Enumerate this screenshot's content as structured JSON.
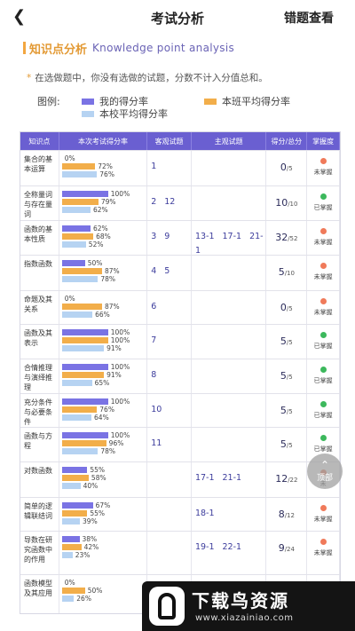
{
  "nav": {
    "back_icon": "chevron-left",
    "title": "考试分析",
    "right_link": "错题查看"
  },
  "section": {
    "title_cn": "知识点分析",
    "title_en": "Knowledge point analysis"
  },
  "note": "在选做题中，你没有选做的试题，分数不计入分值总和。",
  "legend": {
    "title": "图例:",
    "items": [
      {
        "label": "我的得分率",
        "color": "#7a73e4"
      },
      {
        "label": "本班平均得分率",
        "color": "#f2ae4a"
      },
      {
        "label": "本校平均得分率",
        "color": "#b6d3f2"
      }
    ]
  },
  "table": {
    "headers": [
      "知识点",
      "本次考试得分率",
      "客观试题",
      "主观试题",
      "得分/总分",
      "掌握度"
    ],
    "rows": [
      {
        "kp": "集合的基本运算",
        "rates": [
          "0%",
          "72%",
          "76%"
        ],
        "obj": "1",
        "subj": "",
        "score": "0",
        "total": "/5",
        "mastery": "未掌握",
        "status_color": "#f07a5a"
      },
      {
        "kp": "全称量词与存在量词",
        "rates": [
          "100%",
          "79%",
          "62%"
        ],
        "obj": "2 12",
        "subj": "",
        "score": "10",
        "total": "/10",
        "mastery": "已掌握",
        "status_color": "#3cb85c"
      },
      {
        "kp": "函数的基本性质",
        "rates": [
          "62%",
          "68%",
          "52%"
        ],
        "obj": "3 9",
        "subj": "13-1 17-1 21-1",
        "score": "32",
        "total": "/52",
        "mastery": "未掌握",
        "status_color": "#f07a5a"
      },
      {
        "kp": "指数函数",
        "rates": [
          "50%",
          "87%",
          "78%"
        ],
        "obj": "4 5",
        "subj": "",
        "score": "5",
        "total": "/10",
        "mastery": "未掌握",
        "status_color": "#f07a5a"
      },
      {
        "kp": "命题及其关系",
        "rates": [
          "0%",
          "87%",
          "66%"
        ],
        "obj": "6",
        "subj": "",
        "score": "0",
        "total": "/5",
        "mastery": "未掌握",
        "status_color": "#f07a5a"
      },
      {
        "kp": "函数及其表示",
        "rates": [
          "100%",
          "100%",
          "91%"
        ],
        "obj": "7",
        "subj": "",
        "score": "5",
        "total": "/5",
        "mastery": "已掌握",
        "status_color": "#3cb85c"
      },
      {
        "kp": "合情推理与演绎推理",
        "rates": [
          "100%",
          "91%",
          "65%"
        ],
        "obj": "8",
        "subj": "",
        "score": "5",
        "total": "/5",
        "mastery": "已掌握",
        "status_color": "#3cb85c"
      },
      {
        "kp": "充分条件与必要条件",
        "rates": [
          "100%",
          "76%",
          "64%"
        ],
        "obj": "10",
        "subj": "",
        "score": "5",
        "total": "/5",
        "mastery": "已掌握",
        "status_color": "#3cb85c"
      },
      {
        "kp": "函数与方程",
        "rates": [
          "100%",
          "96%",
          "78%"
        ],
        "obj": "11",
        "subj": "",
        "score": "5",
        "total": "/5",
        "mastery": "已掌握",
        "status_color": "#3cb85c"
      },
      {
        "kp": "对数函数",
        "rates": [
          "55%",
          "58%",
          "40%"
        ],
        "obj": "",
        "subj": "17-1 21-1",
        "score": "12",
        "total": "/22",
        "mastery": "未",
        "status_color": "#f07a5a"
      },
      {
        "kp": "简单的逻辑联结词",
        "rates": [
          "67%",
          "55%",
          "39%"
        ],
        "obj": "",
        "subj": "18-1",
        "score": "8",
        "total": "/12",
        "mastery": "未掌握",
        "status_color": "#f07a5a"
      },
      {
        "kp": "导数在研究函数中的作用",
        "rates": [
          "38%",
          "42%",
          "23%"
        ],
        "obj": "",
        "subj": "19-1 22-1",
        "score": "9",
        "total": "/24",
        "mastery": "未掌握",
        "status_color": "#f07a5a"
      },
      {
        "kp": "函数模型及其应用",
        "rates": [
          "0%",
          "50%",
          "26%"
        ],
        "obj": "",
        "subj": "",
        "score": "",
        "total": "",
        "mastery": "",
        "status_color": "#f07a5a"
      }
    ]
  },
  "fab": {
    "label": "顶部",
    "icon": "arrow-up"
  },
  "watermark": {
    "name": "下载鸟资源",
    "url": "www.xiazainiao.com"
  }
}
